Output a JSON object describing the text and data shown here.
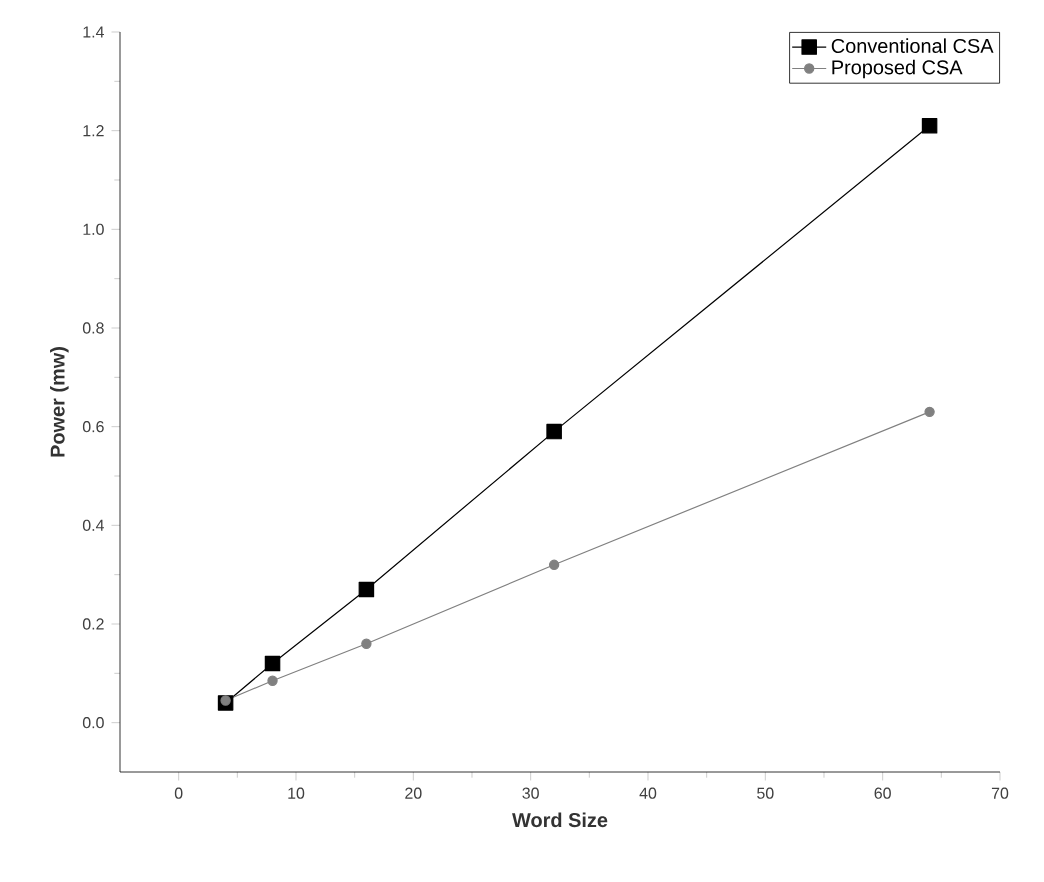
{
  "chart_data": {
    "type": "line",
    "xlabel": "Word Size",
    "ylabel": "Power (mw)",
    "x": [
      4,
      8,
      16,
      32,
      64
    ],
    "series": [
      {
        "name": "Conventional CSA",
        "color": "#000000",
        "marker": "square",
        "values": [
          0.04,
          0.12,
          0.27,
          0.59,
          1.21
        ]
      },
      {
        "name": "Proposed CSA",
        "color": "#808080",
        "marker": "circle",
        "values": [
          0.045,
          0.085,
          0.16,
          0.32,
          0.63
        ]
      }
    ],
    "xlim": [
      -5,
      70
    ],
    "xticks": [
      0,
      10,
      20,
      30,
      40,
      50,
      60,
      70
    ],
    "ylim": [
      -0.1,
      1.4
    ],
    "yticks": [
      {
        "value": 0,
        "label": "0.0"
      },
      0.2,
      0.4,
      0.6,
      0.8,
      {
        "value": 1,
        "label": "1.0"
      },
      1.2,
      1.4
    ],
    "legend": "top right",
    "grid": false,
    "line_style": "solid"
  }
}
